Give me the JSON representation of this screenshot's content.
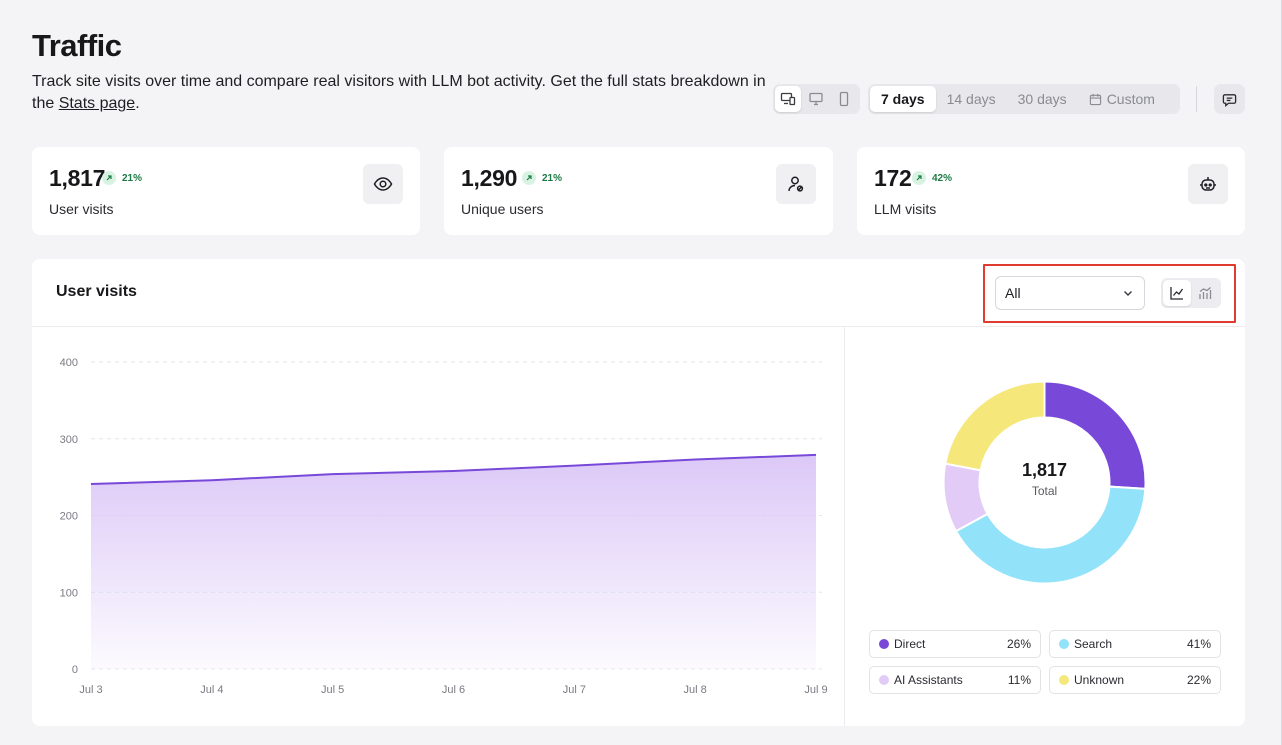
{
  "page": {
    "title": "Traffic",
    "description": "Track site visits over time and compare real visitors with LLM bot activity. Get the full stats breakdown in the ",
    "stats_link": "Stats page",
    "description_end": "."
  },
  "controls": {
    "device_icons": [
      "all-devices-icon",
      "desktop-icon",
      "mobile-icon"
    ],
    "ranges": [
      "7 days",
      "14 days",
      "30 days",
      "Custom"
    ],
    "active_range": "7 days",
    "feedback_icon": "message-icon"
  },
  "stats": [
    {
      "value": "1,817",
      "trend": "21%",
      "label": "User visits",
      "icon": "eye-icon"
    },
    {
      "value": "1,290",
      "trend": "21%",
      "label": "Unique users",
      "icon": "user-icon"
    },
    {
      "value": "172",
      "trend": "42%",
      "label": "LLM visits",
      "icon": "bot-icon"
    }
  ],
  "visits": {
    "title": "User visits",
    "filter_value": "All",
    "view_toggle": [
      "line-chart-icon",
      "bar-chart-icon"
    ],
    "total_value": "1,817",
    "total_label": "Total"
  },
  "colors": {
    "accent": "#7849d9",
    "area_top": "#dcc8f7",
    "direct": "#7849d9",
    "search": "#92e3fa",
    "ai": "#e2ccf7",
    "unknown": "#f6e77a",
    "trend_green": "#1b7a43"
  },
  "chart_data": [
    {
      "type": "area",
      "title": "User visits",
      "x": [
        "Jul 3",
        "Jul 4",
        "Jul 5",
        "Jul 6",
        "Jul 7",
        "Jul 8",
        "Jul 9"
      ],
      "series": [
        {
          "values": [
            241,
            246,
            254,
            258,
            265,
            273,
            279
          ]
        }
      ],
      "ylim": [
        0,
        400
      ],
      "yticks": [
        0,
        100,
        200,
        300,
        400
      ],
      "grid": true
    },
    {
      "type": "pie",
      "style": "donut",
      "categories": [
        "Direct",
        "Search",
        "AI Assistants",
        "Unknown"
      ],
      "values": [
        26,
        41,
        11,
        22
      ],
      "labels": [
        "26%",
        "41%",
        "11%",
        "22%"
      ],
      "colors": [
        "#7849d9",
        "#92e3fa",
        "#e2ccf7",
        "#f6e77a"
      ]
    }
  ]
}
